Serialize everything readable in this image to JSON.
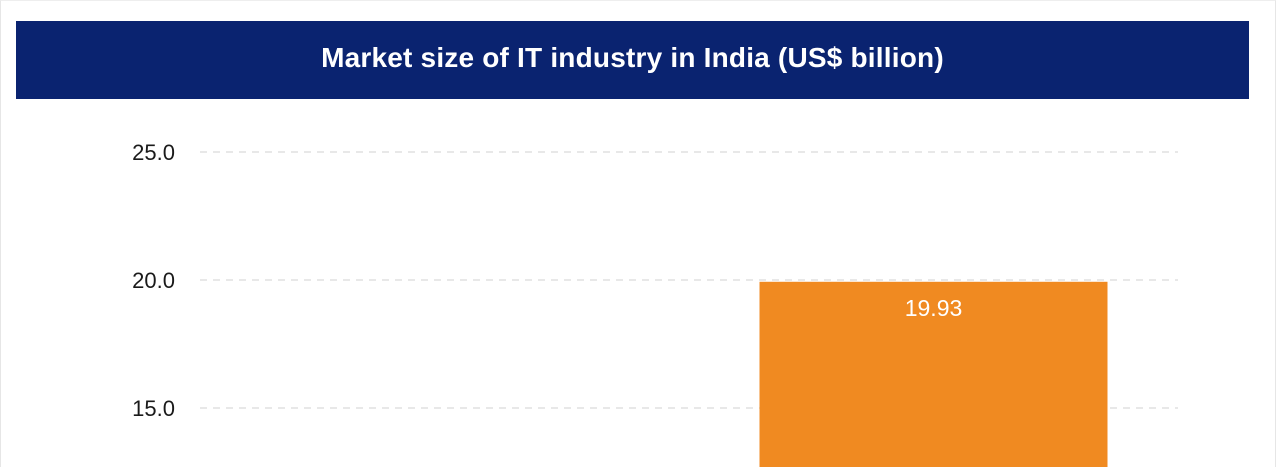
{
  "chart_data": {
    "type": "bar",
    "title": "Market size of IT industry in India (US$ billion)",
    "xlabel": "",
    "ylabel": "",
    "categories": [
      "",
      ""
    ],
    "values": [
      null,
      19.93
    ],
    "data_labels": [
      "",
      "19.93"
    ],
    "yticks": [
      "15.0",
      "20.0",
      "25.0"
    ],
    "ylim_visible": [
      12.8,
      25.4
    ],
    "grid": "horizontal dashed",
    "legend": "none"
  },
  "colors": {
    "title_background": "#0a2370",
    "title_text": "#ffffff",
    "bar": "#f08a21",
    "gridline": "#d9d9d9",
    "tick_text": "#1a1a1a"
  }
}
